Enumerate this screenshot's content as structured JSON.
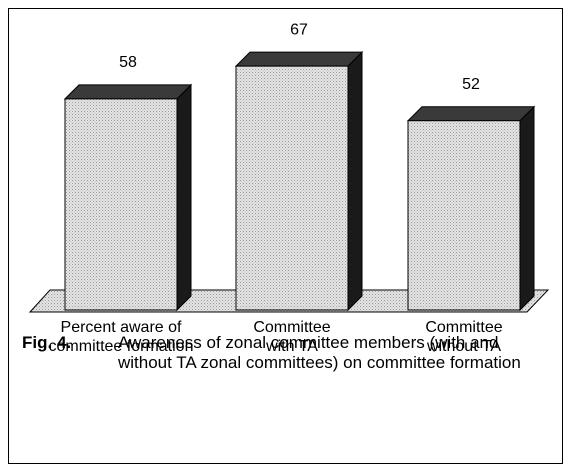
{
  "chart_data": {
    "type": "bar3d",
    "categories": [
      "Percent aware of\ncommittee formation",
      "Committee\nwith TA",
      "Committee\nwithout TA"
    ],
    "values": [
      58,
      67,
      52
    ],
    "color": "#d6d6d6",
    "caption": {
      "label": "Fig. 4.",
      "text": "Awareness of zonal committee members (with and without TA zonal committees) on committee formation"
    }
  }
}
